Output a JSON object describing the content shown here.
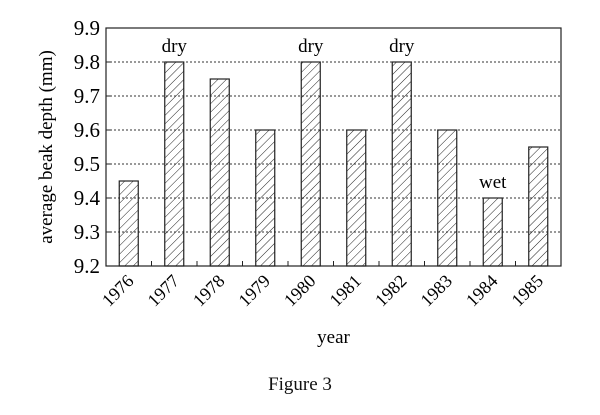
{
  "chart_data": {
    "type": "bar",
    "title": "",
    "caption": "Figure 3",
    "xlabel": "year",
    "ylabel": "average beak depth (mm)",
    "categories": [
      "1976",
      "1977",
      "1978",
      "1979",
      "1980",
      "1981",
      "1982",
      "1983",
      "1984",
      "1985"
    ],
    "values": [
      9.45,
      9.8,
      9.75,
      9.6,
      9.8,
      9.6,
      9.8,
      9.6,
      9.4,
      9.55
    ],
    "annotations": [
      {
        "category": "1977",
        "text": "dry"
      },
      {
        "category": "1980",
        "text": "dry"
      },
      {
        "category": "1982",
        "text": "dry"
      },
      {
        "category": "1984",
        "text": "wet"
      }
    ],
    "ylim": [
      9.2,
      9.9
    ],
    "yticks": [
      "9.2",
      "9.3",
      "9.4",
      "9.5",
      "9.6",
      "9.7",
      "9.8",
      "9.9"
    ],
    "grid": "horizontal dashed",
    "fill": "diagonal hatch",
    "legend": null
  }
}
